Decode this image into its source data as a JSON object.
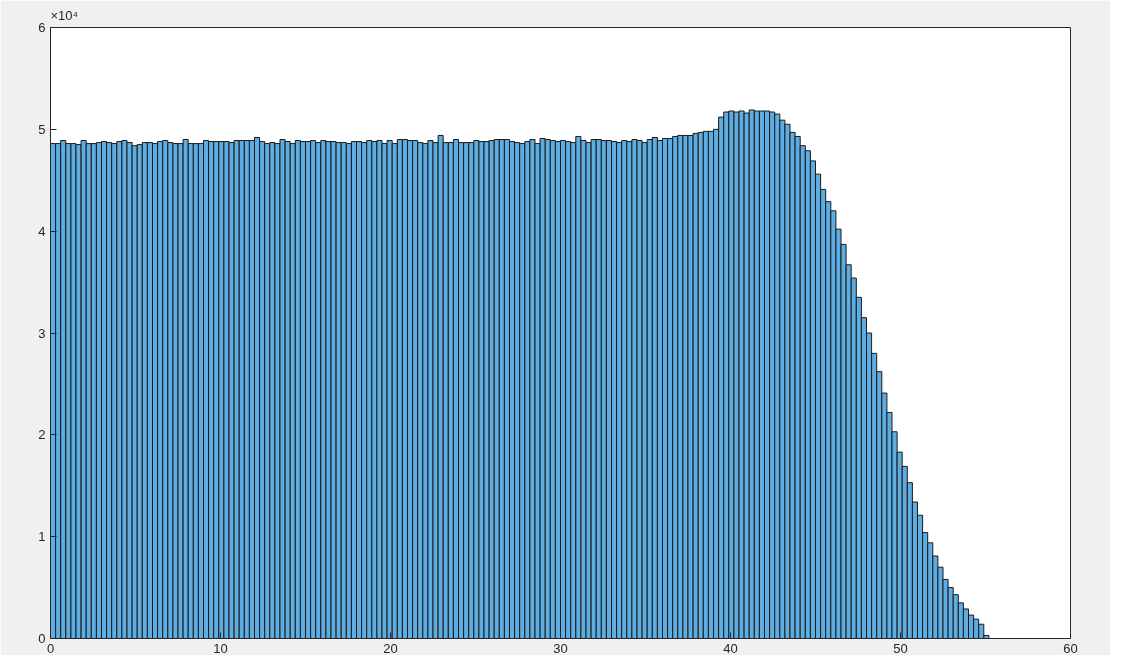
{
  "chart_data": {
    "type": "histogram",
    "bins": [
      0,
      0.3,
      0.6,
      0.9,
      1.2,
      1.5,
      1.8,
      2.1,
      2.4,
      2.7,
      3,
      3.3,
      3.6,
      3.9,
      4.2,
      4.5,
      4.8,
      5.1,
      5.4,
      5.7,
      6,
      6.3,
      6.6,
      6.9,
      7.2,
      7.5,
      7.8,
      8.1,
      8.4,
      8.7,
      9,
      9.3,
      9.6,
      9.9,
      10.2,
      10.5,
      10.8,
      11.1,
      11.4,
      11.7,
      12,
      12.3,
      12.6,
      12.9,
      13.2,
      13.5,
      13.8,
      14.1,
      14.4,
      14.7,
      15,
      15.3,
      15.6,
      15.9,
      16.2,
      16.5,
      16.8,
      17.1,
      17.4,
      17.7,
      18,
      18.3,
      18.6,
      18.9,
      19.2,
      19.5,
      19.8,
      20.1,
      20.4,
      20.7,
      21,
      21.3,
      21.6,
      21.9,
      22.2,
      22.5,
      22.8,
      23.1,
      23.4,
      23.7,
      24,
      24.3,
      24.6,
      24.9,
      25.2,
      25.5,
      25.8,
      26.1,
      26.4,
      26.7,
      27,
      27.3,
      27.6,
      27.9,
      28.2,
      28.5,
      28.8,
      29.1,
      29.4,
      29.7,
      30,
      30.3,
      30.6,
      30.9,
      31.2,
      31.5,
      31.8,
      32.1,
      32.4,
      32.7,
      33,
      33.3,
      33.6,
      33.9,
      34.2,
      34.5,
      34.8,
      35.1,
      35.4,
      35.7,
      36,
      36.3,
      36.6,
      36.9,
      37.2,
      37.5,
      37.8,
      38.1,
      38.4,
      38.7,
      39,
      39.3,
      39.6,
      39.9,
      40.2,
      40.5,
      40.8,
      41.1,
      41.4,
      41.7,
      42,
      42.3,
      42.6,
      42.9,
      43.2,
      43.5,
      43.8,
      44.1,
      44.4,
      44.7,
      45,
      45.3,
      45.6,
      45.9,
      46.2,
      46.5,
      46.8,
      47.1,
      47.4,
      47.7,
      48,
      48.3,
      48.6,
      48.9,
      49.2,
      49.5,
      49.8,
      50.1,
      50.4,
      50.7,
      51,
      51.3,
      51.6,
      51.9,
      52.2,
      52.5,
      52.8,
      53.1,
      53.4,
      53.7,
      54,
      54.3,
      54.6,
      54.9,
      55.2
    ],
    "values": [
      4.86,
      4.86,
      4.89,
      4.86,
      4.86,
      4.85,
      4.89,
      4.86,
      4.86,
      4.87,
      4.88,
      4.87,
      4.86,
      4.88,
      4.89,
      4.87,
      4.84,
      4.85,
      4.87,
      4.87,
      4.86,
      4.88,
      4.89,
      4.87,
      4.86,
      4.86,
      4.9,
      4.86,
      4.86,
      4.86,
      4.89,
      4.88,
      4.88,
      4.88,
      4.88,
      4.87,
      4.89,
      4.89,
      4.89,
      4.89,
      4.92,
      4.88,
      4.86,
      4.87,
      4.86,
      4.9,
      4.88,
      4.86,
      4.89,
      4.88,
      4.88,
      4.89,
      4.87,
      4.89,
      4.88,
      4.88,
      4.87,
      4.87,
      4.86,
      4.88,
      4.88,
      4.87,
      4.89,
      4.88,
      4.89,
      4.86,
      4.89,
      4.86,
      4.9,
      4.9,
      4.89,
      4.89,
      4.87,
      4.86,
      4.89,
      4.87,
      4.94,
      4.87,
      4.87,
      4.9,
      4.87,
      4.87,
      4.87,
      4.89,
      4.88,
      4.88,
      4.89,
      4.9,
      4.9,
      4.9,
      4.88,
      4.87,
      4.86,
      4.88,
      4.9,
      4.86,
      4.91,
      4.9,
      4.89,
      4.88,
      4.89,
      4.88,
      4.87,
      4.93,
      4.89,
      4.87,
      4.9,
      4.9,
      4.89,
      4.89,
      4.88,
      4.87,
      4.89,
      4.88,
      4.9,
      4.89,
      4.87,
      4.9,
      4.92,
      4.89,
      4.91,
      4.91,
      4.93,
      4.94,
      4.94,
      4.94,
      4.96,
      4.97,
      4.98,
      4.98,
      5,
      5.12,
      5.17,
      5.18,
      5.17,
      5.18,
      5.16,
      5.19,
      5.18,
      5.18,
      5.18,
      5.17,
      5.15,
      5.09,
      5.05,
      4.97,
      4.93,
      4.84,
      4.79,
      4.69,
      4.56,
      4.41,
      4.29,
      4.2,
      4.02,
      3.87,
      3.67,
      3.54,
      3.35,
      3.15,
      3,
      2.8,
      2.62,
      2.41,
      2.22,
      2.03,
      1.83,
      1.69,
      1.53,
      1.34,
      1.21,
      1.04,
      0.94,
      0.81,
      0.7,
      0.58,
      0.5,
      0.43,
      0.35,
      0.29,
      0.23,
      0.19,
      0.14,
      0.03
    ],
    "color": "#5dade2",
    "xlim": [
      0,
      60
    ],
    "xticks": [
      0,
      10,
      20,
      30,
      40,
      50,
      60
    ],
    "ylim": [
      0,
      6
    ],
    "yticks": [
      0,
      1,
      2,
      3,
      4,
      5,
      6
    ],
    "annotations": [
      "×10⁴"
    ],
    "grid": false
  }
}
